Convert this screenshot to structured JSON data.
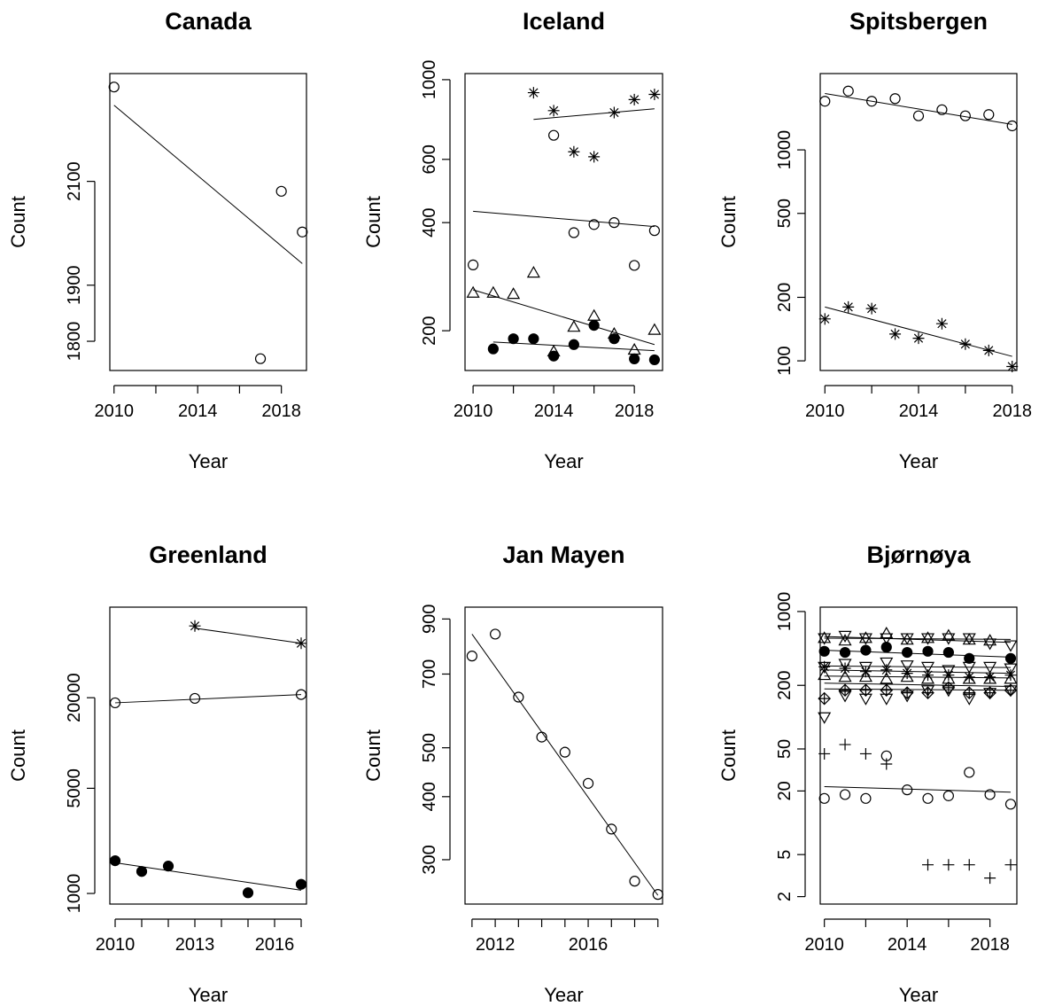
{
  "chart_data": [
    {
      "type": "scatter",
      "title": "Canada",
      "xlabel": "Year",
      "ylabel": "Count",
      "y_scale": "log",
      "xlim": [
        2009.8,
        2019.2
      ],
      "ylim": [
        1750,
        2330
      ],
      "x_ticks": [
        2010,
        2014,
        2018
      ],
      "y_ticks": [
        1800,
        1900,
        2100
      ],
      "x_minor_ticks": [
        2012,
        2016
      ],
      "series": [
        {
          "marker": "open-circle",
          "points": [
            [
              2010,
              2300
            ],
            [
              2017,
              1770
            ],
            [
              2018,
              2080
            ],
            [
              2019,
              2000
            ]
          ],
          "trend": [
            [
              2010,
              2260
            ],
            [
              2019,
              1940
            ]
          ]
        }
      ]
    },
    {
      "type": "scatter",
      "title": "Iceland",
      "xlabel": "Year",
      "ylabel": "Count",
      "y_scale": "log",
      "xlim": [
        2009.6,
        2019.4
      ],
      "ylim": [
        155,
        1040
      ],
      "x_ticks": [
        2010,
        2014,
        2018
      ],
      "y_ticks": [
        200,
        400,
        600,
        1000
      ],
      "x_minor_ticks": [
        2012,
        2016
      ],
      "series": [
        {
          "marker": "asterisk",
          "points": [
            [
              2013,
              920
            ],
            [
              2014,
              820
            ],
            [
              2015,
              630
            ],
            [
              2016,
              610
            ],
            [
              2017,
              810
            ],
            [
              2018,
              880
            ],
            [
              2019,
              910
            ]
          ],
          "trend": [
            [
              2013,
              775
            ],
            [
              2019,
              830
            ]
          ]
        },
        {
          "marker": "open-circle",
          "points": [
            [
              2010,
              305
            ],
            [
              2014,
              700
            ],
            [
              2015,
              375
            ],
            [
              2016,
              395
            ],
            [
              2017,
              400
            ],
            [
              2018,
              304
            ],
            [
              2019,
              380
            ]
          ],
          "trend": [
            [
              2010,
              430
            ],
            [
              2019,
              390
            ]
          ]
        },
        {
          "marker": "open-triangle",
          "points": [
            [
              2010,
              255
            ],
            [
              2011,
              255
            ],
            [
              2012,
              253
            ],
            [
              2013,
              290
            ],
            [
              2014,
              175
            ],
            [
              2015,
              205
            ],
            [
              2016,
              220
            ],
            [
              2017,
              196
            ],
            [
              2018,
              177
            ],
            [
              2019,
              201
            ]
          ],
          "trend": [
            [
              2010,
              260
            ],
            [
              2019,
              183
            ]
          ]
        },
        {
          "marker": "filled-circle",
          "points": [
            [
              2011,
              178
            ],
            [
              2012,
              190
            ],
            [
              2013,
              190
            ],
            [
              2014,
              170
            ],
            [
              2015,
              183
            ],
            [
              2016,
              207
            ],
            [
              2017,
              190
            ],
            [
              2018,
              167
            ],
            [
              2019,
              166
            ]
          ],
          "trend": [
            [
              2011,
              186
            ],
            [
              2019,
              176
            ]
          ]
        }
      ]
    },
    {
      "type": "scatter",
      "title": "Spitsbergen",
      "xlabel": "Year",
      "ylabel": "Count",
      "y_scale": "log",
      "xlim": [
        2009.8,
        2018.2
      ],
      "ylim": [
        90,
        2300
      ],
      "x_ticks": [
        2010,
        2014,
        2018
      ],
      "y_ticks": [
        100,
        200,
        500,
        1000
      ],
      "x_minor_ticks": [
        2012,
        2016
      ],
      "series": [
        {
          "marker": "open-circle",
          "points": [
            [
              2010,
              1700
            ],
            [
              2011,
              1900
            ],
            [
              2012,
              1700
            ],
            [
              2013,
              1750
            ],
            [
              2014,
              1450
            ],
            [
              2015,
              1550
            ],
            [
              2016,
              1450
            ],
            [
              2017,
              1470
            ],
            [
              2018,
              1300
            ]
          ],
          "trend": [
            [
              2010,
              1850
            ],
            [
              2018,
              1320
            ]
          ]
        },
        {
          "marker": "asterisk",
          "points": [
            [
              2010,
              158
            ],
            [
              2011,
              180
            ],
            [
              2012,
              177
            ],
            [
              2013,
              134
            ],
            [
              2014,
              128
            ],
            [
              2015,
              150
            ],
            [
              2016,
              120
            ],
            [
              2017,
              112
            ],
            [
              2018,
              94
            ]
          ],
          "trend": [
            [
              2010,
              180
            ],
            [
              2018,
              105
            ]
          ]
        }
      ]
    },
    {
      "type": "scatter",
      "title": "Greenland",
      "xlabel": "Year",
      "ylabel": "Count",
      "y_scale": "log",
      "xlim": [
        2009.8,
        2017.2
      ],
      "ylim": [
        850,
        80000
      ],
      "x_ticks": [
        2010,
        2013,
        2016
      ],
      "y_ticks": [
        1000,
        5000,
        20000
      ],
      "x_minor_ticks": [
        2011,
        2012,
        2014,
        2015,
        2017
      ],
      "series": [
        {
          "marker": "asterisk",
          "points": [
            [
              2013,
              60000
            ],
            [
              2017,
              46000
            ]
          ],
          "trend": [
            [
              2013,
              58000
            ],
            [
              2017,
              46000
            ]
          ]
        },
        {
          "marker": "open-circle",
          "points": [
            [
              2010,
              18500
            ],
            [
              2013,
              19800
            ],
            [
              2017,
              21000
            ]
          ],
          "trend": [
            [
              2010,
              18500
            ],
            [
              2017,
              21000
            ]
          ]
        },
        {
          "marker": "filled-circle",
          "points": [
            [
              2010,
              1650
            ],
            [
              2011,
              1400
            ],
            [
              2012,
              1520
            ],
            [
              2015,
              1010
            ],
            [
              2017,
              1150
            ]
          ],
          "trend": [
            [
              2010,
              1600
            ],
            [
              2017,
              1050
            ]
          ]
        }
      ]
    },
    {
      "type": "scatter",
      "title": "Jan Mayen",
      "xlabel": "Year",
      "ylabel": "Count",
      "y_scale": "log",
      "xlim": [
        2010.7,
        2019.2
      ],
      "ylim": [
        245,
        950
      ],
      "x_ticks": [
        2012,
        2016
      ],
      "y_ticks": [
        300,
        400,
        500,
        700,
        900
      ],
      "x_minor_ticks": [
        2011,
        2013,
        2014,
        2015,
        2017,
        2018,
        2019
      ],
      "series": [
        {
          "marker": "open-circle",
          "points": [
            [
              2011,
              760
            ],
            [
              2012,
              840
            ],
            [
              2013,
              630
            ],
            [
              2014,
              525
            ],
            [
              2015,
              490
            ],
            [
              2016,
              425
            ],
            [
              2017,
              345
            ],
            [
              2018,
              272
            ],
            [
              2019,
              256
            ]
          ],
          "trend": [
            [
              2011,
              840
            ],
            [
              2019,
              255
            ]
          ]
        }
      ]
    },
    {
      "type": "scatter",
      "title": "Bjørnøya",
      "xlabel": "Year",
      "ylabel": "Count",
      "y_scale": "log",
      "xlim": [
        2009.8,
        2019.3
      ],
      "ylim": [
        1.7,
        1100
      ],
      "x_ticks": [
        2010,
        2014,
        2018
      ],
      "y_ticks": [
        2,
        5,
        20,
        50,
        200,
        1000
      ],
      "x_minor_ticks": [
        2012,
        2016
      ],
      "series": [
        {
          "marker": "open-down-triangle",
          "points": [
            [
              2010,
              560
            ],
            [
              2011,
              590
            ],
            [
              2012,
              560
            ],
            [
              2013,
              560
            ],
            [
              2014,
              560
            ],
            [
              2015,
              560
            ],
            [
              2016,
              560
            ],
            [
              2017,
              560
            ],
            [
              2018,
              500
            ],
            [
              2019,
              480
            ]
          ],
          "trend": [
            [
              2010,
              580
            ],
            [
              2019,
              510
            ]
          ]
        },
        {
          "marker": "open-triangle",
          "points": [
            [
              2010,
              560
            ],
            [
              2011,
              530
            ],
            [
              2012,
              560
            ],
            [
              2013,
              620
            ],
            [
              2014,
              540
            ],
            [
              2015,
              560
            ],
            [
              2016,
              590
            ],
            [
              2017,
              540
            ],
            [
              2018,
              530
            ]
          ],
          "trend": [
            [
              2010,
              560
            ],
            [
              2019,
              545
            ]
          ]
        },
        {
          "marker": "filled-circle",
          "points": [
            [
              2010,
              420
            ],
            [
              2011,
              410
            ],
            [
              2012,
              430
            ],
            [
              2013,
              460
            ],
            [
              2014,
              410
            ],
            [
              2015,
              420
            ],
            [
              2016,
              410
            ],
            [
              2017,
              360
            ],
            [
              2019,
              360
            ]
          ],
          "trend": [
            [
              2010,
              430
            ],
            [
              2019,
              370
            ]
          ]
        },
        {
          "marker": "open-down-triangle",
          "points": [
            [
              2010,
              300
            ],
            [
              2011,
              320
            ],
            [
              2012,
              300
            ],
            [
              2013,
              330
            ],
            [
              2014,
              310
            ],
            [
              2015,
              300
            ],
            [
              2016,
              280
            ],
            [
              2017,
              300
            ],
            [
              2018,
              300
            ],
            [
              2019,
              290
            ]
          ],
          "trend": [
            [
              2010,
              305
            ],
            [
              2019,
              295
            ]
          ]
        },
        {
          "marker": "asterisk",
          "points": [
            [
              2010,
              300
            ],
            [
              2011,
              290
            ],
            [
              2012,
              270
            ],
            [
              2013,
              280
            ],
            [
              2014,
              260
            ],
            [
              2015,
              250
            ],
            [
              2016,
              250
            ],
            [
              2017,
              240
            ],
            [
              2018,
              240
            ],
            [
              2019,
              250
            ]
          ],
          "trend": [
            [
              2010,
              280
            ],
            [
              2019,
              260
            ]
          ]
        },
        {
          "marker": "open-triangle",
          "points": [
            [
              2010,
              250
            ],
            [
              2011,
              240
            ],
            [
              2012,
              240
            ],
            [
              2013,
              230
            ],
            [
              2014,
              240
            ],
            [
              2015,
              230
            ],
            [
              2016,
              230
            ],
            [
              2017,
              230
            ],
            [
              2018,
              230
            ],
            [
              2019,
              230
            ]
          ],
          "trend": [
            [
              2010,
              245
            ],
            [
              2019,
              235
            ]
          ]
        },
        {
          "marker": "open-down-triangle",
          "points": [
            [
              2010,
              100
            ],
            [
              2011,
              160
            ],
            [
              2012,
              150
            ],
            [
              2013,
              150
            ],
            [
              2014,
              160
            ],
            [
              2015,
              180
            ],
            [
              2016,
              180
            ],
            [
              2017,
              150
            ],
            [
              2018,
              170
            ],
            [
              2019,
              180
            ]
          ],
          "trend": [
            [
              2010,
              210
            ],
            [
              2019,
              195
            ]
          ]
        },
        {
          "marker": "open-diamond",
          "points": [
            [
              2010,
              150
            ],
            [
              2011,
              180
            ],
            [
              2012,
              180
            ],
            [
              2013,
              180
            ],
            [
              2014,
              170
            ],
            [
              2015,
              170
            ],
            [
              2016,
              190
            ],
            [
              2017,
              170
            ],
            [
              2018,
              170
            ],
            [
              2019,
              180
            ]
          ],
          "trend": [
            [
              2010,
              185
            ],
            [
              2019,
              180
            ]
          ]
        },
        {
          "marker": "plus",
          "points": [
            [
              2010,
              45
            ],
            [
              2011,
              55
            ],
            [
              2012,
              45
            ],
            [
              2013,
              36
            ],
            [
              2015,
              4
            ],
            [
              2016,
              4
            ],
            [
              2017,
              4
            ],
            [
              2018,
              3
            ],
            [
              2019,
              4
            ]
          ],
          "trend": []
        },
        {
          "marker": "open-circle",
          "points": [
            [
              2010,
              17
            ],
            [
              2011,
              18.5
            ],
            [
              2012,
              17
            ],
            [
              2013,
              43
            ],
            [
              2014,
              20.5
            ],
            [
              2015,
              17
            ],
            [
              2016,
              18
            ],
            [
              2017,
              30
            ],
            [
              2018,
              18.5
            ],
            [
              2019,
              15
            ]
          ],
          "trend": [
            [
              2010,
              22
            ],
            [
              2019,
              19.5
            ]
          ]
        }
      ]
    }
  ]
}
